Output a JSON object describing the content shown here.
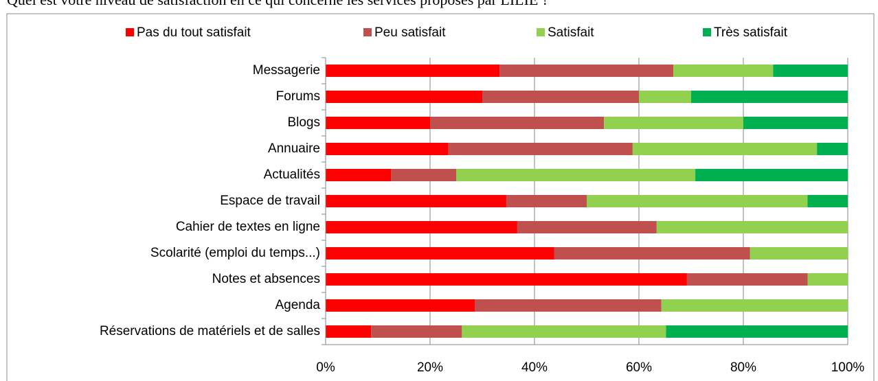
{
  "chart_data": {
    "type": "stacked-barh",
    "title": "Quel est votre niveau de satisfaction en ce qui concerne les services proposés par LILIE ?",
    "categories": [
      "Messagerie",
      "Forums",
      "Blogs",
      "Annuaire",
      "Actualités",
      "Espace de travail",
      "Cahier de textes en ligne",
      "Scolarité (emploi du temps...)",
      "Notes et absences",
      "Agenda",
      "Réservations de matériels et de salles"
    ],
    "series": [
      {
        "name": "Pas du tout satisfait",
        "color": "#ff0000",
        "values": [
          33.3,
          30,
          20,
          23.5,
          12.5,
          34.6,
          36.7,
          43.75,
          69.2,
          28.6,
          8.7
        ]
      },
      {
        "name": "Peu satisfait",
        "color": "#c0504d",
        "values": [
          33.3,
          30,
          33.3,
          35.3,
          12.5,
          15.4,
          26.7,
          37.5,
          23.1,
          35.7,
          17.4
        ]
      },
      {
        "name": "Satisfait",
        "color": "#92d050",
        "values": [
          19.1,
          10,
          26.7,
          35.3,
          45.8,
          42.3,
          36.6,
          18.75,
          7.7,
          35.7,
          39.1
        ]
      },
      {
        "name": "Très satisfait",
        "color": "#00b050",
        "values": [
          14.3,
          30,
          20,
          5.9,
          29.2,
          7.7,
          0,
          0,
          0,
          0,
          34.8
        ]
      }
    ],
    "xlim": [
      0,
      100
    ],
    "xticks": [
      {
        "value": 0,
        "label": "0%"
      },
      {
        "value": 20,
        "label": "20%"
      },
      {
        "value": 40,
        "label": "40%"
      },
      {
        "value": 60,
        "label": "60%"
      },
      {
        "value": 80,
        "label": "80%"
      },
      {
        "value": 100,
        "label": "100%"
      }
    ],
    "grid": true,
    "legend": "top"
  }
}
